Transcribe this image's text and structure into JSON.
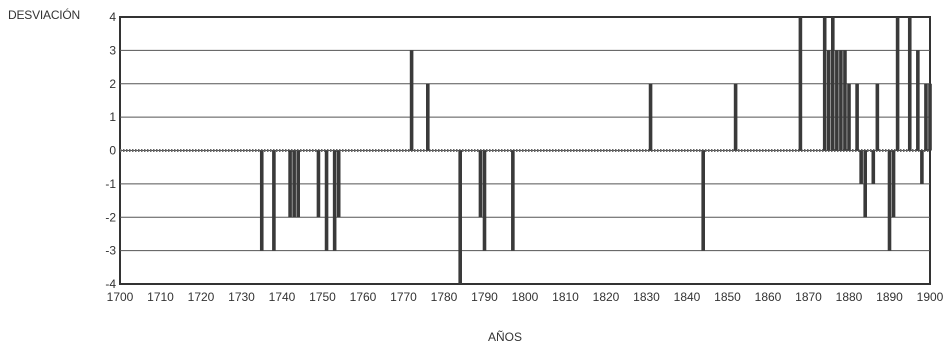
{
  "chart_data": {
    "type": "bar",
    "title": "",
    "ylabel": "DESVIACIÓN",
    "xlabel": "AÑOS",
    "xlim": [
      1700,
      1900
    ],
    "ylim": [
      -4,
      4
    ],
    "x_ticks": [
      1700,
      1710,
      1720,
      1730,
      1740,
      1750,
      1760,
      1770,
      1780,
      1790,
      1800,
      1810,
      1820,
      1830,
      1840,
      1850,
      1860,
      1870,
      1880,
      1890,
      1900
    ],
    "y_ticks": [
      -4,
      -3,
      -2,
      -1,
      0,
      1,
      2,
      3,
      4
    ],
    "grid": true,
    "series": [
      {
        "color": "#3a3a3a",
        "points": [
          {
            "x": 1735,
            "y": -3
          },
          {
            "x": 1738,
            "y": -3
          },
          {
            "x": 1742,
            "y": -2
          },
          {
            "x": 1743,
            "y": -2
          },
          {
            "x": 1744,
            "y": -2
          },
          {
            "x": 1749,
            "y": -2
          },
          {
            "x": 1751,
            "y": -3
          },
          {
            "x": 1753,
            "y": -3
          },
          {
            "x": 1754,
            "y": -2
          },
          {
            "x": 1772,
            "y": 3
          },
          {
            "x": 1776,
            "y": 2
          },
          {
            "x": 1784,
            "y": -4
          },
          {
            "x": 1789,
            "y": -2
          },
          {
            "x": 1790,
            "y": -3
          },
          {
            "x": 1797,
            "y": -3
          },
          {
            "x": 1831,
            "y": 2
          },
          {
            "x": 1844,
            "y": -3
          },
          {
            "x": 1852,
            "y": 2
          },
          {
            "x": 1868,
            "y": 4
          },
          {
            "x": 1874,
            "y": 4
          },
          {
            "x": 1875,
            "y": 3
          },
          {
            "x": 1876,
            "y": 4
          },
          {
            "x": 1877,
            "y": 3
          },
          {
            "x": 1878,
            "y": 3
          },
          {
            "x": 1879,
            "y": 3
          },
          {
            "x": 1880,
            "y": 2
          },
          {
            "x": 1882,
            "y": 2
          },
          {
            "x": 1883,
            "y": -1
          },
          {
            "x": 1884,
            "y": -2
          },
          {
            "x": 1886,
            "y": -1
          },
          {
            "x": 1887,
            "y": 2
          },
          {
            "x": 1890,
            "y": -3
          },
          {
            "x": 1891,
            "y": -2
          },
          {
            "x": 1892,
            "y": 4
          },
          {
            "x": 1895,
            "y": 4
          },
          {
            "x": 1897,
            "y": 3
          },
          {
            "x": 1898,
            "y": -1
          },
          {
            "x": 1899,
            "y": 2
          },
          {
            "x": 1900,
            "y": 2
          }
        ]
      }
    ]
  }
}
